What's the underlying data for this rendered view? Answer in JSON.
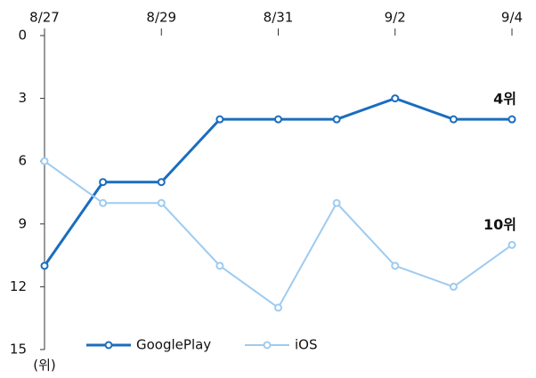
{
  "chart_data": {
    "type": "line",
    "categories": [
      "8/27",
      null,
      "8/29",
      null,
      "8/31",
      null,
      "9/2",
      null,
      "9/4"
    ],
    "series": [
      {
        "name": "GooglePlay",
        "color": "#1a6dbf",
        "values": [
          11,
          7,
          7,
          4,
          4,
          4,
          3,
          4,
          4
        ]
      },
      {
        "name": "iOS",
        "color": "#9ecbf0",
        "values": [
          6,
          8,
          8,
          11,
          13,
          8,
          11,
          12,
          10
        ]
      }
    ],
    "ylim": [
      0,
      15
    ],
    "yticks": [
      0,
      3,
      6,
      9,
      12,
      15
    ],
    "y_inverted": true,
    "y_label": "(위)",
    "annotations": [
      "4위",
      "10위"
    ],
    "grid": false,
    "legend": "bottom"
  }
}
